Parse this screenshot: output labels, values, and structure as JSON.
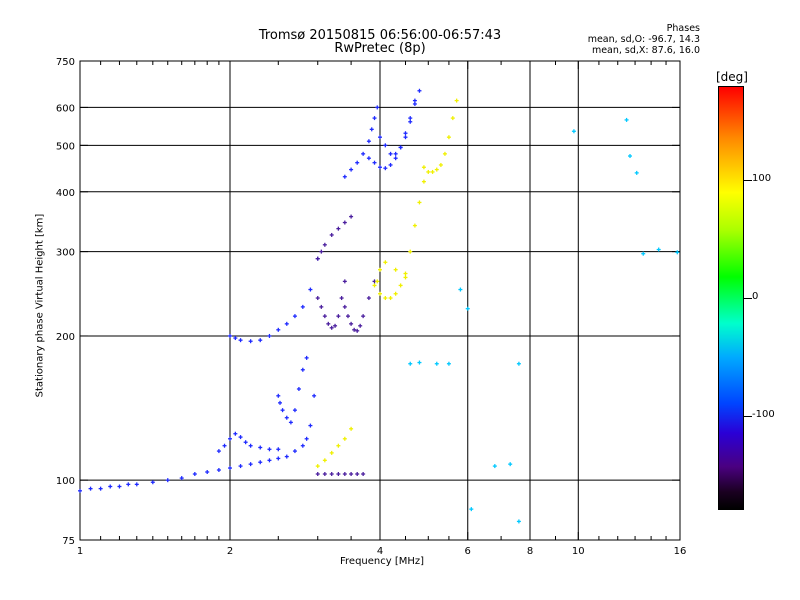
{
  "title_line1": "Tromsø 20150815 06:56:00-06:57:43",
  "title_line2": "RwPretec (8p)",
  "phases": {
    "heading": "Phases",
    "o_stats": "mean, sd,O: -96.7, 14.3",
    "x_stats": "mean, sd,X:  87.6, 16.0"
  },
  "colorbar": {
    "unit": "[deg]",
    "ticks": [
      "100",
      "0",
      "-100"
    ],
    "ticks_values": [
      100,
      0,
      -100
    ],
    "range": [
      -180,
      180
    ]
  },
  "colors": {
    "o_mode": "#1f2bff",
    "o_mode_dark": "#4b1f9e",
    "x_mode": "#f0f000",
    "cyan": "#00c8ff",
    "grid": "#000000"
  },
  "chart_data": {
    "type": "scatter",
    "xlabel": "Frequency [MHz]",
    "ylabel": "Stationary phase Virtual Height [km]",
    "x_scale": "log",
    "y_scale": "log",
    "xlim": [
      1,
      16
    ],
    "ylim": [
      75,
      750
    ],
    "x_ticks": [
      1,
      2,
      4,
      6,
      8,
      10,
      16
    ],
    "x_tick_labels": [
      "1",
      "2",
      "4",
      "6",
      "8",
      "10",
      "16"
    ],
    "x_minor_ticks": [
      1.1,
      1.2,
      1.3,
      1.4,
      1.5,
      1.6,
      1.7,
      1.8,
      1.9,
      2.5,
      3,
      3.5,
      4.5,
      5,
      5.5,
      7,
      9,
      11,
      12,
      13,
      14,
      15
    ],
    "x_major_grid": [
      2,
      4,
      6,
      8,
      10
    ],
    "y_ticks": [
      75,
      100,
      200,
      300,
      400,
      500,
      600,
      750
    ],
    "y_tick_labels": [
      "75",
      "100",
      "200",
      "300",
      "400",
      "500",
      "600",
      "750"
    ],
    "y_major_grid": [
      100,
      200,
      300,
      400,
      500,
      600
    ],
    "grid": true,
    "point_series": [
      {
        "mode": "O",
        "phase": -100,
        "points": [
          [
            1.0,
            95
          ],
          [
            1.05,
            96
          ],
          [
            1.1,
            96
          ],
          [
            1.15,
            97
          ],
          [
            1.2,
            97
          ],
          [
            1.25,
            98
          ],
          [
            1.3,
            98
          ],
          [
            1.4,
            99
          ],
          [
            1.5,
            100
          ],
          [
            1.6,
            101
          ],
          [
            1.7,
            103
          ],
          [
            1.8,
            104
          ],
          [
            1.9,
            105
          ],
          [
            2.0,
            106
          ],
          [
            2.1,
            107
          ],
          [
            2.2,
            108
          ],
          [
            2.3,
            109
          ],
          [
            2.4,
            110
          ],
          [
            2.5,
            111
          ],
          [
            2.6,
            112
          ],
          [
            2.7,
            115
          ],
          [
            2.8,
            118
          ],
          [
            2.85,
            122
          ],
          [
            2.9,
            130
          ],
          [
            2.95,
            150
          ]
        ]
      },
      {
        "mode": "O",
        "phase": -100,
        "points": [
          [
            1.9,
            115
          ],
          [
            1.95,
            118
          ],
          [
            2.0,
            122
          ],
          [
            2.05,
            125
          ],
          [
            2.1,
            123
          ],
          [
            2.15,
            120
          ],
          [
            2.2,
            118
          ],
          [
            2.3,
            117
          ],
          [
            2.4,
            116
          ],
          [
            2.5,
            116
          ]
        ]
      },
      {
        "mode": "O",
        "phase": -100,
        "points": [
          [
            2.0,
            200
          ],
          [
            2.05,
            198
          ],
          [
            2.1,
            196
          ],
          [
            2.2,
            195
          ],
          [
            2.3,
            196
          ],
          [
            2.4,
            200
          ],
          [
            2.5,
            206
          ],
          [
            2.6,
            212
          ],
          [
            2.7,
            220
          ],
          [
            2.8,
            230
          ],
          [
            2.9,
            250
          ],
          [
            3.0,
            290
          ]
        ]
      },
      {
        "mode": "O",
        "phase": -95,
        "points": [
          [
            2.5,
            150
          ],
          [
            2.52,
            145
          ],
          [
            2.55,
            140
          ],
          [
            2.6,
            135
          ],
          [
            2.65,
            132
          ],
          [
            2.7,
            140
          ],
          [
            2.75,
            155
          ],
          [
            2.8,
            170
          ],
          [
            2.85,
            180
          ]
        ]
      },
      {
        "mode": "O",
        "phase": -115,
        "points": [
          [
            3.0,
            240
          ],
          [
            3.05,
            230
          ],
          [
            3.1,
            220
          ],
          [
            3.15,
            212
          ],
          [
            3.2,
            208
          ],
          [
            3.25,
            210
          ],
          [
            3.3,
            220
          ],
          [
            3.35,
            240
          ],
          [
            3.4,
            260
          ]
        ]
      },
      {
        "mode": "O",
        "phase": -115,
        "points": [
          [
            3.4,
            230
          ],
          [
            3.45,
            220
          ],
          [
            3.5,
            212
          ],
          [
            3.55,
            206
          ],
          [
            3.6,
            205
          ],
          [
            3.65,
            210
          ],
          [
            3.7,
            220
          ],
          [
            3.8,
            240
          ],
          [
            3.9,
            260
          ]
        ]
      },
      {
        "mode": "O",
        "phase": -115,
        "points": [
          [
            3.0,
            290
          ],
          [
            3.05,
            300
          ],
          [
            3.1,
            310
          ],
          [
            3.2,
            325
          ],
          [
            3.3,
            335
          ],
          [
            3.4,
            345
          ],
          [
            3.5,
            355
          ]
        ]
      },
      {
        "mode": "O",
        "phase": -100,
        "points": [
          [
            3.4,
            430
          ],
          [
            3.5,
            445
          ],
          [
            3.6,
            460
          ],
          [
            3.7,
            480
          ],
          [
            3.8,
            510
          ],
          [
            3.85,
            540
          ],
          [
            3.9,
            570
          ],
          [
            3.95,
            600
          ]
        ]
      },
      {
        "mode": "O",
        "phase": -100,
        "points": [
          [
            3.8,
            470
          ],
          [
            3.9,
            460
          ],
          [
            4.0,
            450
          ],
          [
            4.1,
            448
          ],
          [
            4.2,
            455
          ],
          [
            4.3,
            470
          ],
          [
            4.4,
            495
          ],
          [
            4.5,
            530
          ],
          [
            4.6,
            570
          ],
          [
            4.7,
            620
          ]
        ]
      },
      {
        "mode": "O",
        "phase": -100,
        "points": [
          [
            4.0,
            520
          ],
          [
            4.1,
            500
          ],
          [
            4.2,
            480
          ],
          [
            4.3,
            480
          ],
          [
            4.4,
            495
          ],
          [
            4.5,
            520
          ],
          [
            4.6,
            560
          ],
          [
            4.7,
            610
          ],
          [
            4.8,
            650
          ]
        ]
      },
      {
        "mode": "O",
        "phase": -110,
        "points": [
          [
            3.0,
            103
          ],
          [
            3.1,
            103
          ],
          [
            3.2,
            103
          ],
          [
            3.3,
            103
          ],
          [
            3.4,
            103
          ],
          [
            3.5,
            103
          ],
          [
            3.6,
            103
          ],
          [
            3.7,
            103
          ]
        ]
      },
      {
        "mode": "X",
        "phase": 100,
        "points": [
          [
            3.0,
            107
          ],
          [
            3.1,
            110
          ],
          [
            3.2,
            114
          ],
          [
            3.3,
            118
          ],
          [
            3.4,
            122
          ],
          [
            3.5,
            128
          ]
        ]
      },
      {
        "mode": "X",
        "phase": 100,
        "points": [
          [
            3.9,
            255
          ],
          [
            4.0,
            245
          ],
          [
            4.1,
            240
          ],
          [
            4.2,
            240
          ],
          [
            4.3,
            245
          ],
          [
            4.4,
            255
          ],
          [
            4.5,
            270
          ],
          [
            4.6,
            300
          ],
          [
            4.7,
            340
          ],
          [
            4.8,
            380
          ],
          [
            4.9,
            420
          ]
        ]
      },
      {
        "mode": "X",
        "phase": 100,
        "points": [
          [
            4.9,
            450
          ],
          [
            5.0,
            440
          ],
          [
            5.1,
            440
          ],
          [
            5.2,
            445
          ],
          [
            5.3,
            455
          ],
          [
            5.4,
            480
          ],
          [
            5.5,
            520
          ],
          [
            5.6,
            570
          ],
          [
            5.7,
            620
          ]
        ]
      },
      {
        "mode": "X",
        "phase": 100,
        "points": [
          [
            3.95,
            260
          ],
          [
            4.0,
            275
          ],
          [
            4.1,
            285
          ],
          [
            4.3,
            275
          ],
          [
            4.5,
            265
          ]
        ]
      },
      {
        "mode": "stray",
        "phase": -30,
        "points": [
          [
            4.6,
            175
          ],
          [
            4.8,
            176
          ],
          [
            5.2,
            175
          ],
          [
            5.5,
            175
          ],
          [
            6.0,
            228
          ],
          [
            6.1,
            87
          ],
          [
            7.3,
            108
          ],
          [
            7.6,
            82
          ],
          [
            7.6,
            175
          ],
          [
            9.8,
            535
          ],
          [
            12.5,
            565
          ],
          [
            12.7,
            475
          ],
          [
            13.1,
            438
          ],
          [
            13.5,
            297
          ],
          [
            14.5,
            303
          ],
          [
            15.8,
            299
          ],
          [
            5.8,
            250
          ],
          [
            6.8,
            107
          ]
        ]
      }
    ]
  }
}
